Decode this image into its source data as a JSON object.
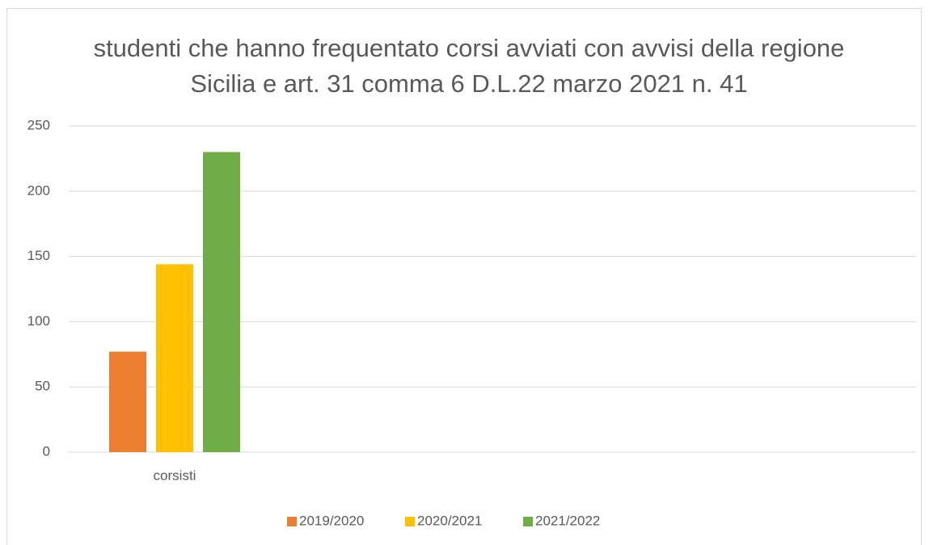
{
  "chart_data": {
    "type": "bar",
    "title": "studenti che hanno frequentato corsi avviati con avvisi della regione Sicilia e art. 31 comma 6 D.L.22 marzo 2021 n. 41",
    "categories": [
      "corsisti",
      null,
      null,
      null
    ],
    "series": [
      {
        "name": "2019/2020",
        "color": "#ed7d31",
        "values": [
          77,
          null,
          null,
          null
        ]
      },
      {
        "name": "2020/2021",
        "color": "#ffc000",
        "values": [
          144,
          null,
          null,
          null
        ]
      },
      {
        "name": "2021/2022",
        "color": "#70ad47",
        "values": [
          230,
          null,
          null,
          null
        ]
      }
    ],
    "ylim": [
      0,
      250
    ],
    "yticks": [
      0,
      50,
      100,
      150,
      200,
      250
    ],
    "grid": true,
    "legend": "bottom"
  }
}
